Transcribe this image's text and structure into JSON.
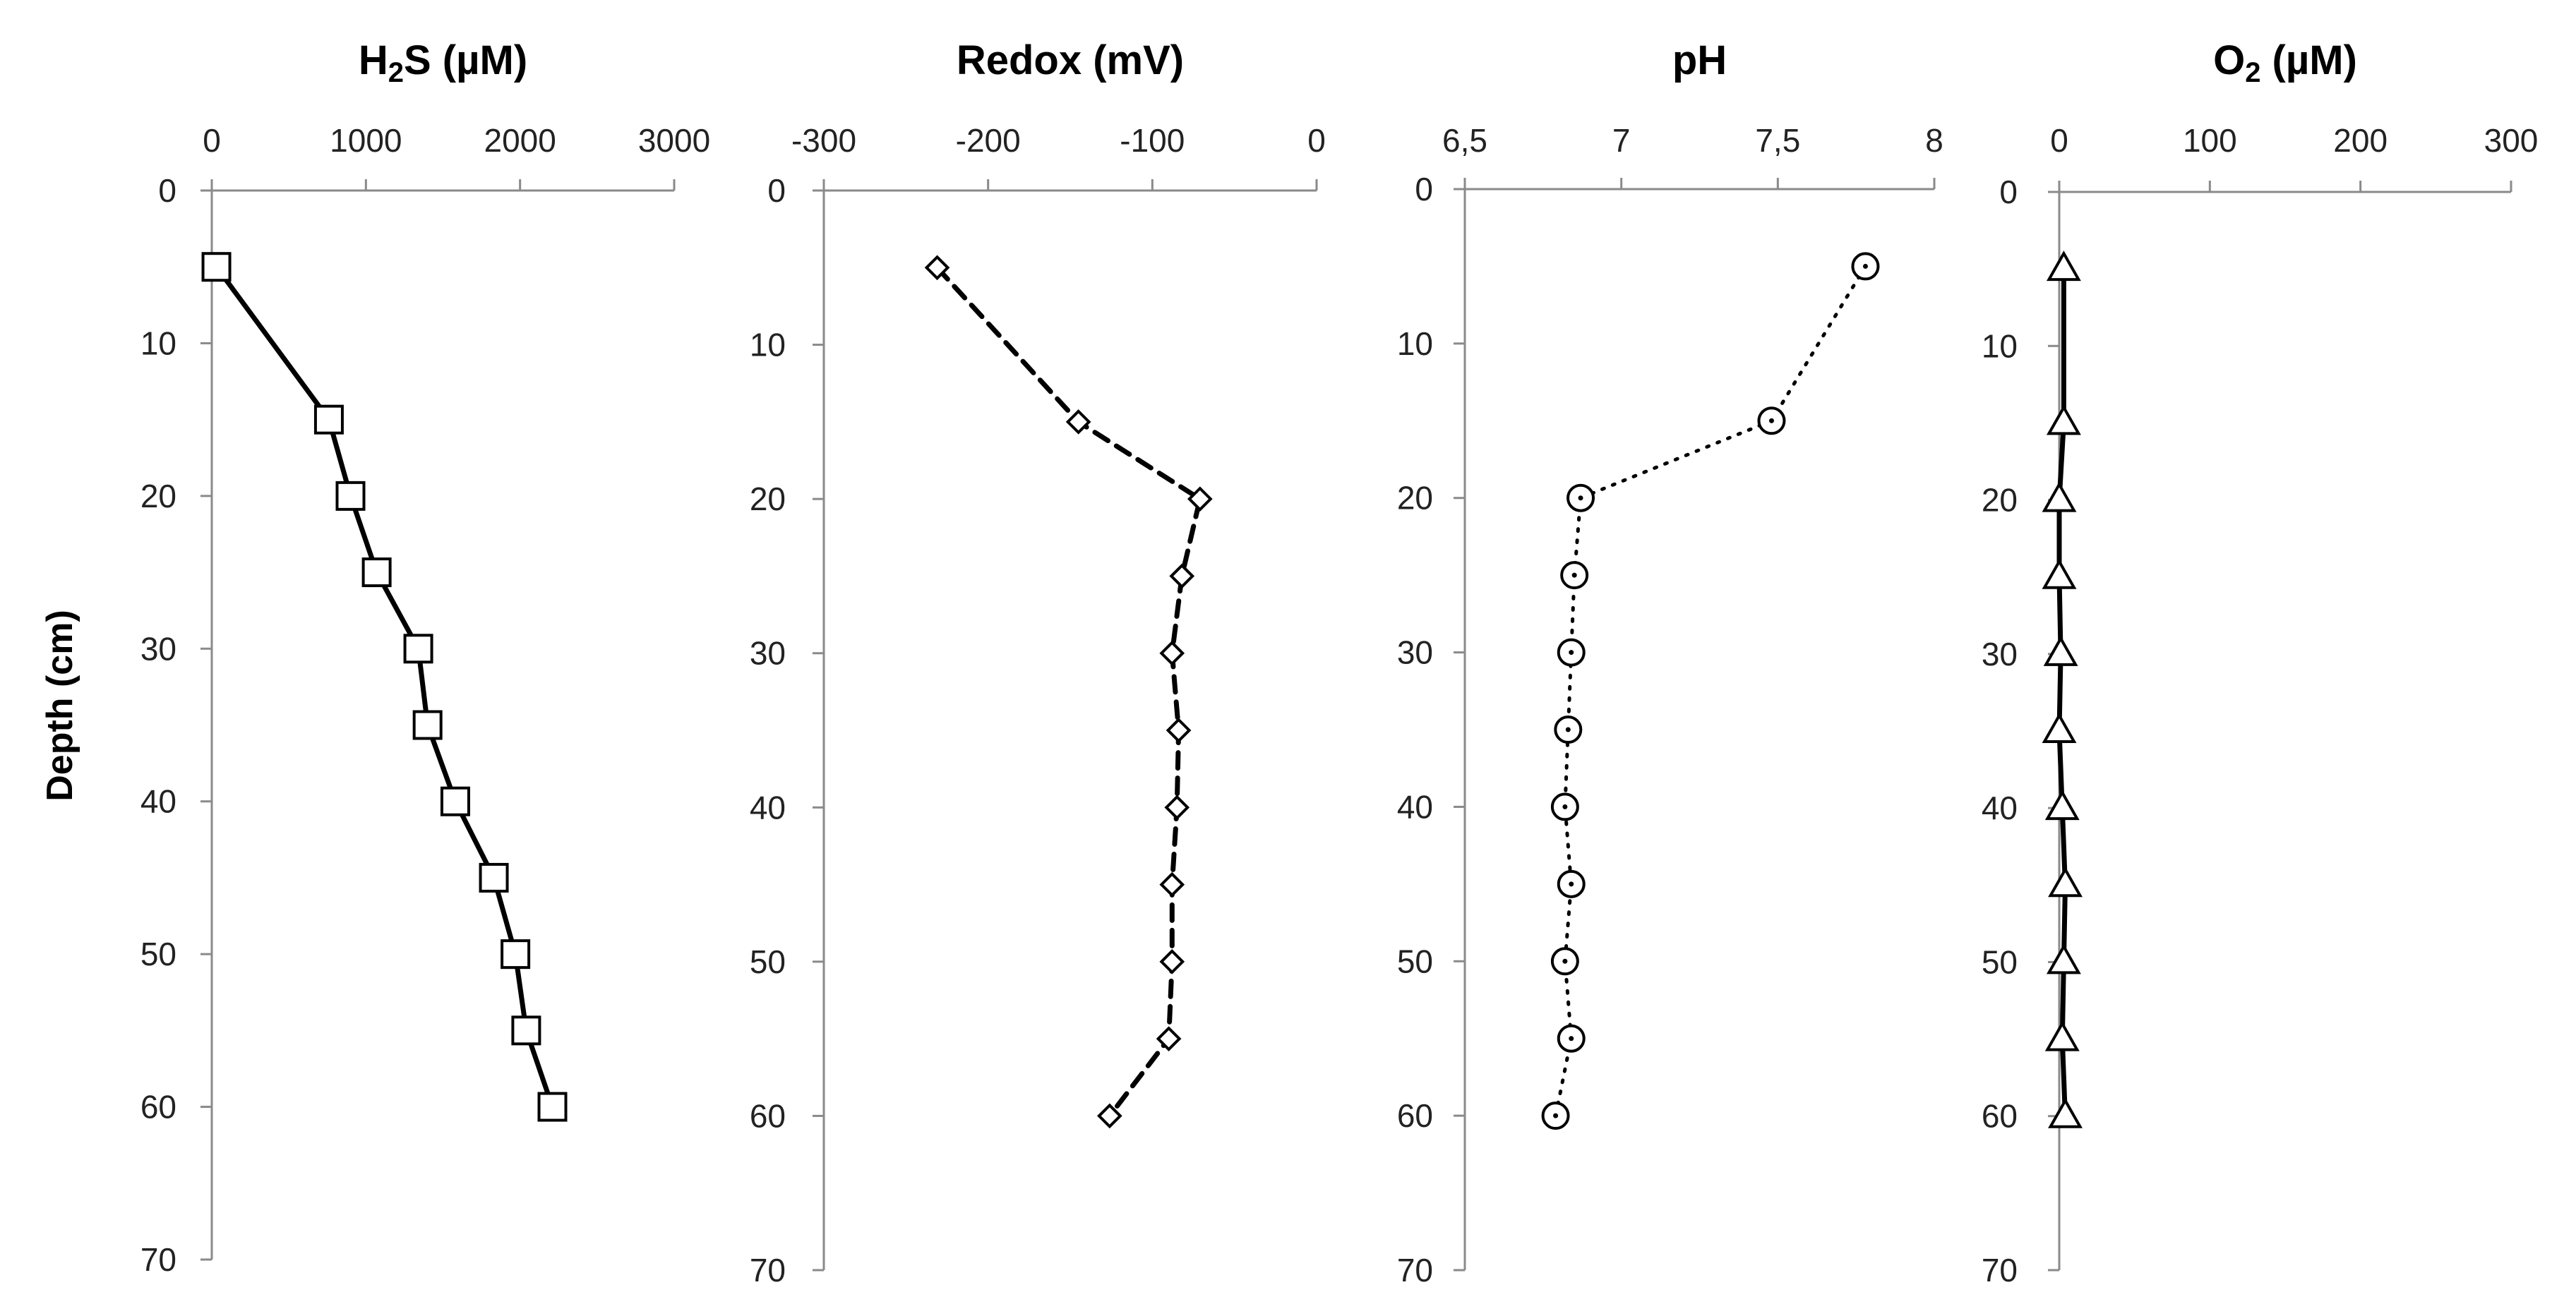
{
  "figure": {
    "y_label": "Depth (cm)"
  },
  "chart_data": [
    {
      "type": "line",
      "title_parts": [
        "H",
        "2",
        "S (µM)"
      ],
      "title": "H2S (µM)",
      "xlabel": "H2S (µM)",
      "ylabel": "Depth (cm)",
      "xlim": [
        0,
        3000
      ],
      "ylim": [
        0,
        70
      ],
      "y_inverted": true,
      "x_ticks": [
        "0",
        "1000",
        "2000",
        "3000"
      ],
      "y_ticks": [
        "0",
        "10",
        "20",
        "30",
        "40",
        "50",
        "60",
        "70"
      ],
      "line_style": "solid",
      "marker": "square",
      "series": [
        {
          "name": "H2S",
          "depth": [
            5,
            15,
            20,
            25,
            30,
            35,
            40,
            45,
            50,
            55,
            60
          ],
          "values": [
            30,
            760,
            900,
            1070,
            1340,
            1400,
            1580,
            1830,
            1970,
            2040,
            2210
          ]
        }
      ]
    },
    {
      "type": "line",
      "title_parts": [
        "Redox (mV)"
      ],
      "title": "Redox (mV)",
      "xlabel": "Redox (mV)",
      "ylabel": "Depth (cm)",
      "xlim": [
        -300,
        0
      ],
      "ylim": [
        0,
        70
      ],
      "y_inverted": true,
      "x_ticks": [
        "-300",
        "-200",
        "-100",
        "0"
      ],
      "y_ticks": [
        "0",
        "10",
        "20",
        "30",
        "40",
        "50",
        "60",
        "70"
      ],
      "line_style": "dashed",
      "marker": "diamond",
      "series": [
        {
          "name": "Redox",
          "depth": [
            5,
            15,
            20,
            25,
            30,
            35,
            40,
            45,
            50,
            55,
            60
          ],
          "values": [
            -231,
            -145,
            -71,
            -82,
            -88,
            -84,
            -85,
            -88,
            -88,
            -90,
            -126
          ]
        }
      ]
    },
    {
      "type": "line",
      "title_parts": [
        "pH"
      ],
      "title": "pH",
      "xlabel": "pH",
      "ylabel": "Depth (cm)",
      "xlim": [
        6.5,
        8
      ],
      "ylim": [
        0,
        70
      ],
      "y_inverted": true,
      "x_ticks": [
        "6,5",
        "7",
        "7,5",
        "8"
      ],
      "y_ticks": [
        "0",
        "10",
        "20",
        "30",
        "40",
        "50",
        "60",
        "70"
      ],
      "line_style": "dotted",
      "marker": "circle-dot",
      "series": [
        {
          "name": "pH",
          "depth": [
            5,
            15,
            20,
            25,
            30,
            35,
            40,
            45,
            50,
            55,
            60
          ],
          "values": [
            7.78,
            7.48,
            6.87,
            6.85,
            6.84,
            6.83,
            6.82,
            6.84,
            6.82,
            6.84,
            6.79
          ]
        }
      ]
    },
    {
      "type": "line",
      "title_parts": [
        "O",
        "2",
        " (µM)"
      ],
      "title": "O2 (µM)",
      "xlabel": "O2 (µM)",
      "ylabel": "Depth (cm)",
      "xlim": [
        0,
        300
      ],
      "ylim": [
        0,
        70
      ],
      "y_inverted": true,
      "x_ticks": [
        "0",
        "100",
        "200",
        "300"
      ],
      "y_ticks": [
        "0",
        "10",
        "20",
        "30",
        "40",
        "50",
        "60",
        "70"
      ],
      "line_style": "solid",
      "marker": "triangle",
      "series": [
        {
          "name": "O2",
          "depth": [
            5,
            15,
            20,
            25,
            30,
            35,
            40,
            45,
            50,
            55,
            60
          ],
          "values": [
            3,
            3,
            0,
            0,
            1,
            0,
            2,
            4,
            3,
            2,
            4
          ]
        }
      ]
    }
  ]
}
